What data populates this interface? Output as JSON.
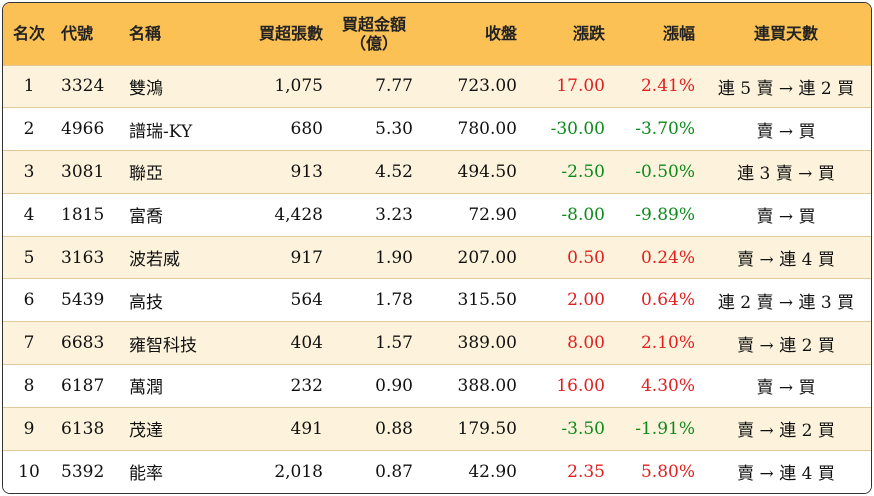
{
  "headers": {
    "rank": "名次",
    "code": "代號",
    "name": "名稱",
    "shares": "買超張數",
    "amount_line1": "買超金額",
    "amount_line2": "（億）",
    "close": "收盤",
    "change": "漲跌",
    "pct": "漲幅",
    "days": "連買天數"
  },
  "rows": [
    {
      "rank": "1",
      "code": "3324",
      "name": "雙鴻",
      "shares": "1,075",
      "amount": "7.77",
      "close": "723.00",
      "change": "17.00",
      "pct": "2.41%",
      "days": "連 5 賣 → 連 2 買",
      "dir": "up"
    },
    {
      "rank": "2",
      "code": "4966",
      "name": "譜瑞-KY",
      "shares": "680",
      "amount": "5.30",
      "close": "780.00",
      "change": "-30.00",
      "pct": "-3.70%",
      "days": "賣 → 買",
      "dir": "down"
    },
    {
      "rank": "3",
      "code": "3081",
      "name": "聯亞",
      "shares": "913",
      "amount": "4.52",
      "close": "494.50",
      "change": "-2.50",
      "pct": "-0.50%",
      "days": "連 3 賣 → 買",
      "dir": "down"
    },
    {
      "rank": "4",
      "code": "1815",
      "name": "富喬",
      "shares": "4,428",
      "amount": "3.23",
      "close": "72.90",
      "change": "-8.00",
      "pct": "-9.89%",
      "days": "賣 → 買",
      "dir": "down"
    },
    {
      "rank": "5",
      "code": "3163",
      "name": "波若威",
      "shares": "917",
      "amount": "1.90",
      "close": "207.00",
      "change": "0.50",
      "pct": "0.24%",
      "days": "賣 → 連 4 買",
      "dir": "up"
    },
    {
      "rank": "6",
      "code": "5439",
      "name": "高技",
      "shares": "564",
      "amount": "1.78",
      "close": "315.50",
      "change": "2.00",
      "pct": "0.64%",
      "days": "連 2 賣 → 連 3 買",
      "dir": "up"
    },
    {
      "rank": "7",
      "code": "6683",
      "name": "雍智科技",
      "shares": "404",
      "amount": "1.57",
      "close": "389.00",
      "change": "8.00",
      "pct": "2.10%",
      "days": "賣 → 連 2 買",
      "dir": "up"
    },
    {
      "rank": "8",
      "code": "6187",
      "name": "萬潤",
      "shares": "232",
      "amount": "0.90",
      "close": "388.00",
      "change": "16.00",
      "pct": "4.30%",
      "days": "賣 → 買",
      "dir": "up"
    },
    {
      "rank": "9",
      "code": "6138",
      "name": "茂達",
      "shares": "491",
      "amount": "0.88",
      "close": "179.50",
      "change": "-3.50",
      "pct": "-1.91%",
      "days": "賣 → 連 2 買",
      "dir": "down"
    },
    {
      "rank": "10",
      "code": "5392",
      "name": "能率",
      "shares": "2,018",
      "amount": "0.87",
      "close": "42.90",
      "change": "2.35",
      "pct": "5.80%",
      "days": "賣 → 連 4 買",
      "dir": "up"
    }
  ],
  "colors": {
    "header_bg": "#fbc155",
    "odd_row_bg": "#fdf3dc",
    "up": "#e02020",
    "down": "#0d8a1c"
  }
}
